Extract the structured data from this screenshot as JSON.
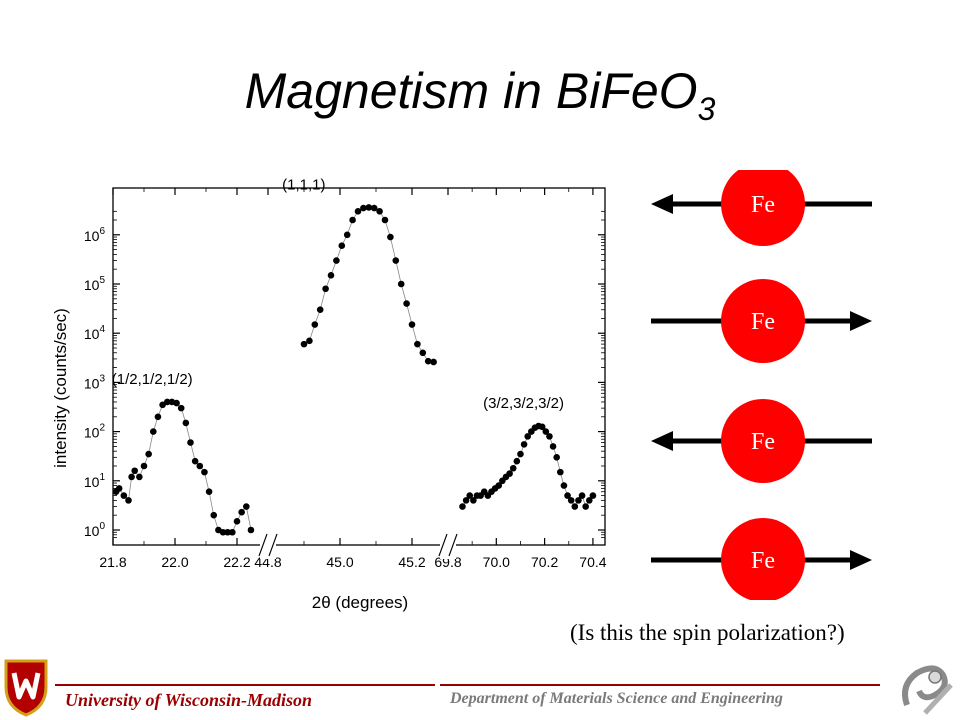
{
  "slide": {
    "title_main": "Magnetism in BiFeO",
    "title_sub": "3",
    "question": "(Is this the spin polarization?)",
    "footer_left": "University  of Wisconsin-Madison",
    "footer_right": "Department of Materials Science and Engineering",
    "brand_color": "#9b0000",
    "crest_icon": "uw-crest-icon",
    "deco_icon": "engineering-swirl-icon"
  },
  "spins": {
    "atom_label": "Fe",
    "atom_color": "#ff0000",
    "directions": [
      "left",
      "right",
      "left",
      "right"
    ]
  },
  "chart_data": {
    "type": "scatter",
    "title": "",
    "xlabel": "2θ (degrees)",
    "ylabel": "intensity (counts/sec)",
    "yscale": "log",
    "ylim": [
      0.7,
      3000000
    ],
    "yticks": [
      "10^0",
      "10^1",
      "10^2",
      "10^3",
      "10^4",
      "10^5",
      "10^6"
    ],
    "panels": [
      {
        "xlim": [
          21.8,
          22.3
        ],
        "xticks": [
          "21.8",
          "22.0",
          "22.2"
        ],
        "label": "(1/2,1/2,1/2)",
        "x": [
          21.81,
          21.82,
          21.835,
          21.85,
          21.86,
          21.87,
          21.885,
          21.9,
          21.915,
          21.93,
          21.945,
          21.96,
          21.975,
          21.99,
          22.005,
          22.02,
          22.035,
          22.05,
          22.065,
          22.08,
          22.095,
          22.11,
          22.125,
          22.14,
          22.155,
          22.17,
          22.185,
          22.2,
          22.215,
          22.23,
          22.245
        ],
        "y": [
          6,
          7,
          5,
          4,
          12,
          16,
          12,
          20,
          35,
          100,
          200,
          350,
          400,
          400,
          380,
          300,
          150,
          60,
          25,
          20,
          15,
          6,
          2,
          1,
          0.9,
          0.9,
          0.9,
          1.5,
          2.3,
          3,
          1
        ]
      },
      {
        "xlim": [
          44.8,
          45.3
        ],
        "xticks": [
          "44.8",
          "45.0",
          "45.2"
        ],
        "label": "(1,1,1)",
        "x": [
          44.9,
          44.915,
          44.93,
          44.945,
          44.96,
          44.975,
          44.99,
          45.005,
          45.02,
          45.035,
          45.05,
          45.065,
          45.08,
          45.095,
          45.11,
          45.125,
          45.14,
          45.155,
          45.17,
          45.185,
          45.2,
          45.215,
          45.23,
          45.245,
          45.26
        ],
        "y": [
          6000,
          7000,
          15000,
          30000,
          80000,
          150000,
          300000,
          600000,
          1000000,
          2000000,
          3000000,
          3500000,
          3600000,
          3500000,
          3000000,
          2000000,
          900000,
          300000,
          100000,
          40000,
          15000,
          6000,
          4000,
          2700,
          2600
        ]
      },
      {
        "xlim": [
          69.8,
          70.45
        ],
        "xticks": [
          "69.8",
          "70.0",
          "70.2",
          "70.4"
        ],
        "label": "(3/2,3/2,3/2)",
        "x": [
          69.86,
          69.875,
          69.89,
          69.905,
          69.92,
          69.935,
          69.95,
          69.965,
          69.98,
          69.995,
          70.01,
          70.025,
          70.04,
          70.055,
          70.07,
          70.085,
          70.1,
          70.115,
          70.13,
          70.145,
          70.16,
          70.175,
          70.19,
          70.205,
          70.22,
          70.235,
          70.25,
          70.265,
          70.28,
          70.295,
          70.31,
          70.325,
          70.34,
          70.355,
          70.37,
          70.385,
          70.4
        ],
        "y": [
          3,
          4,
          5,
          4,
          5,
          5,
          6,
          5,
          6,
          7,
          8,
          10,
          12,
          14,
          18,
          25,
          35,
          55,
          80,
          100,
          120,
          130,
          125,
          100,
          80,
          50,
          30,
          15,
          8,
          5,
          4,
          3,
          4,
          5,
          3,
          4,
          5
        ]
      }
    ]
  }
}
